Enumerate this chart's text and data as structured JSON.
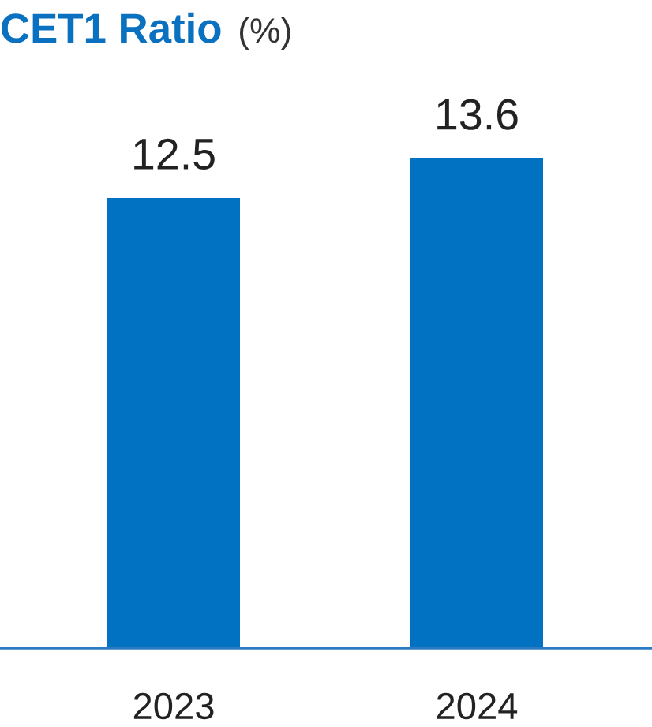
{
  "chart_data": {
    "type": "bar",
    "title": "CET1 Ratio",
    "subtitle": "(%)",
    "categories": [
      "2023",
      "2024"
    ],
    "values": [
      12.5,
      13.6
    ],
    "color": "#0072c1",
    "data_labels": true
  }
}
